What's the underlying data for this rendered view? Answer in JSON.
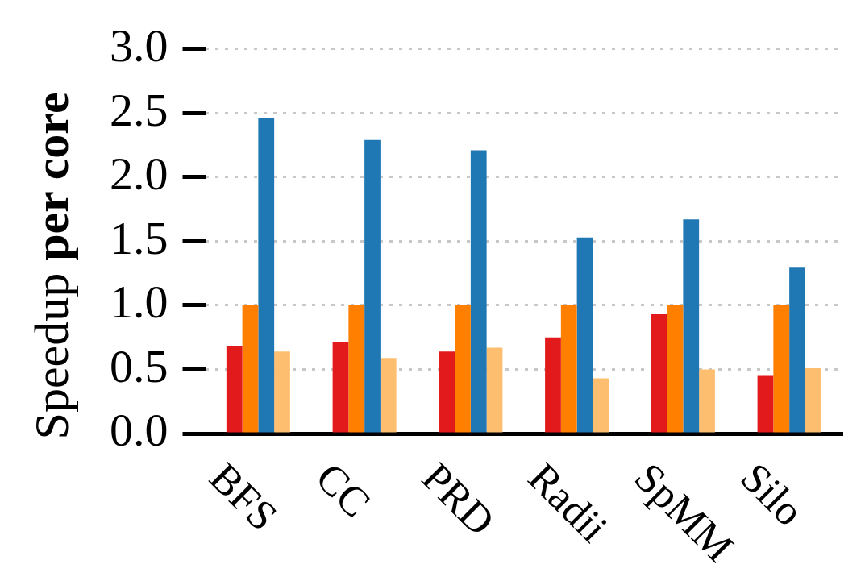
{
  "chart_data": {
    "type": "bar",
    "ylabel": "Speedup per core",
    "categories": [
      "BFS",
      "CC",
      "PRD",
      "Radii",
      "SpMM",
      "Silo"
    ],
    "series": [
      {
        "color": "#e31a1c",
        "values": [
          0.68,
          0.71,
          0.64,
          0.75,
          0.93,
          0.45
        ]
      },
      {
        "color": "#ff7f00",
        "values": [
          1.0,
          1.0,
          1.0,
          1.0,
          1.0,
          1.0
        ]
      },
      {
        "color": "#1f78b4",
        "values": [
          2.46,
          2.29,
          2.21,
          1.53,
          1.67,
          1.3
        ]
      },
      {
        "color": "#fdbf6f",
        "values": [
          0.64,
          0.59,
          0.67,
          0.43,
          0.5,
          0.51
        ]
      }
    ],
    "ylim": [
      0,
      3
    ],
    "yticks": [
      {
        "value": 0,
        "label": "0.0"
      },
      {
        "value": 0.5,
        "label": "0.5"
      },
      {
        "value": 1,
        "label": "1.0"
      },
      {
        "value": 1.5,
        "label": "1.5"
      },
      {
        "value": 2,
        "label": "2.0"
      },
      {
        "value": 2.5,
        "label": "2.5"
      },
      {
        "value": 3,
        "label": "3.0"
      }
    ],
    "grid": "y",
    "legend": false
  }
}
